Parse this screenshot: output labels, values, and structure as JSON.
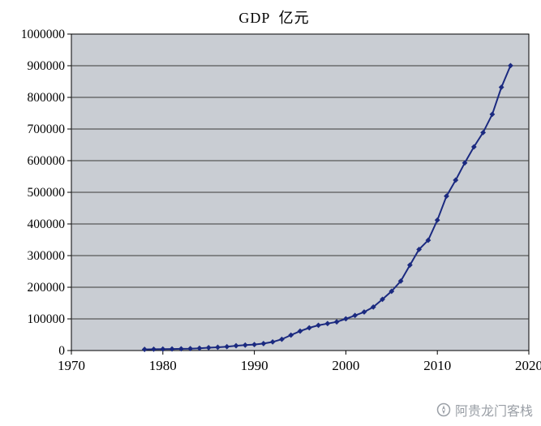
{
  "chart_data": {
    "type": "line",
    "title": "GDP  亿元",
    "xlabel": "",
    "ylabel": "",
    "xlim": [
      1970,
      2020
    ],
    "ylim": [
      0,
      1000000
    ],
    "x_ticks": [
      1970,
      1980,
      1990,
      2000,
      2010,
      2020
    ],
    "y_ticks": [
      0,
      100000,
      200000,
      300000,
      400000,
      500000,
      600000,
      700000,
      800000,
      900000,
      1000000
    ],
    "grid": "horizontal",
    "legend_position": "none",
    "plot_bg_color": "#c9cdd3",
    "grid_color": "#3a3a3a",
    "line_color": "#1b2a80",
    "marker": "diamond",
    "series": [
      {
        "name": "GDP",
        "x": [
          1978,
          1979,
          1980,
          1981,
          1982,
          1983,
          1984,
          1985,
          1986,
          1987,
          1988,
          1989,
          1990,
          1991,
          1992,
          1993,
          1994,
          1995,
          1996,
          1997,
          1998,
          1999,
          2000,
          2001,
          2002,
          2003,
          2004,
          2005,
          2006,
          2007,
          2008,
          2009,
          2010,
          2011,
          2012,
          2013,
          2014,
          2015,
          2016,
          2017,
          2018
        ],
        "y": [
          3679,
          4100,
          4588,
          4936,
          5373,
          6021,
          7279,
          9099,
          10376,
          12175,
          15180,
          17179,
          18873,
          22006,
          27195,
          35673,
          48638,
          61340,
          71814,
          79715,
          85196,
          90564,
          100280,
          110863,
          121717,
          137422,
          161840,
          187319,
          219439,
          270092,
          319516,
          348518,
          412119,
          487940,
          538580,
          592963,
          643563,
          688858,
          746395,
          832036,
          900309
        ]
      }
    ]
  },
  "watermark": {
    "text": "阿贵龙门客栈",
    "icon": "compass-logo-icon"
  }
}
